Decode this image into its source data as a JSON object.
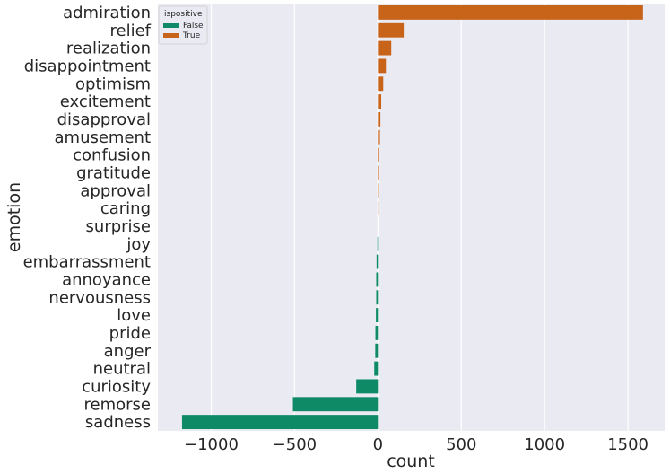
{
  "chart_data": {
    "type": "bar",
    "orientation": "horizontal",
    "categories": [
      "admiration",
      "relief",
      "realization",
      "disappointment",
      "optimism",
      "excitement",
      "disapproval",
      "amusement",
      "confusion",
      "gratitude",
      "approval",
      "caring",
      "surprise",
      "joy",
      "embarrassment",
      "annoyance",
      "nervousness",
      "love",
      "pride",
      "anger",
      "neutral",
      "curiosity",
      "remorse",
      "sadness"
    ],
    "values": [
      1590,
      155,
      80,
      48,
      32,
      20,
      15,
      12,
      4,
      3,
      2,
      1,
      0,
      -3,
      -8,
      -10,
      -10,
      -12,
      -15,
      -16,
      -22,
      -130,
      -510,
      -1175
    ],
    "series": [
      {
        "name": "False",
        "color": "#0f8a66"
      },
      {
        "name": "True",
        "color": "#c8631a"
      }
    ],
    "xlabel": "count",
    "ylabel": "emotion",
    "xticks": [
      "−1000",
      "−500",
      "0",
      "500",
      "1000",
      "1500"
    ],
    "xtick_values": [
      -1000,
      -500,
      0,
      500,
      1000,
      1500
    ],
    "xlim": [
      -1320,
      1720
    ],
    "grid": true,
    "legend_title": "ispositive",
    "legend_placement": "top-left"
  }
}
